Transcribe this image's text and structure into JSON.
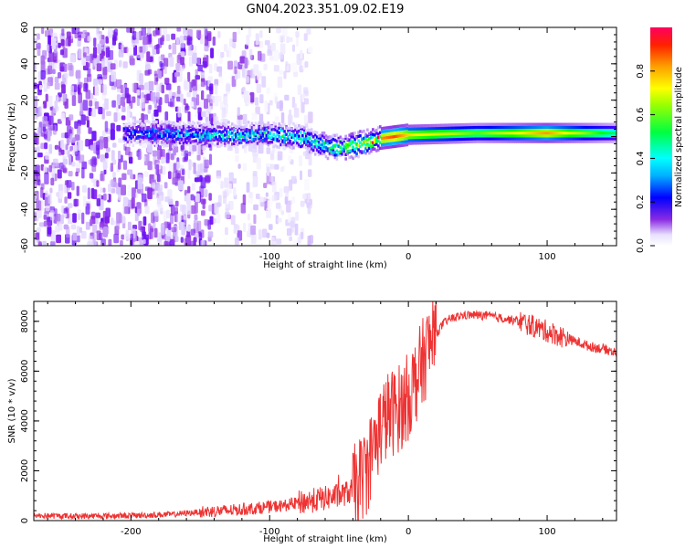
{
  "title": "GN04.2023.351.09.02.E19",
  "colors": {
    "snr_line": "#ee3333",
    "axis": "#000000",
    "background": "#ffffff",
    "colormap": [
      "#ffffff",
      "#d8c8ff",
      "#8a2be2",
      "#5a00ff",
      "#0000ff",
      "#00a0ff",
      "#00ffff",
      "#00ff80",
      "#00ff00",
      "#a0ff00",
      "#ffff00",
      "#ffa000",
      "#ff2000",
      "#ff0060"
    ]
  },
  "chart_data": [
    {
      "type": "heatmap",
      "xlabel": "Height of straight line (km)",
      "ylabel": "Frequency (Hz)",
      "xlim": [
        -270,
        150
      ],
      "ylim": [
        -60,
        60
      ],
      "xticks": [
        -200,
        -100,
        0,
        100
      ],
      "yticks": [
        -60,
        -40,
        -20,
        0,
        20,
        40,
        60
      ],
      "grid": false,
      "colorbar": {
        "label": "Normalized spectral amplitude",
        "range": [
          0,
          1
        ],
        "ticks": [
          0.0,
          0.2,
          0.4,
          0.6,
          0.8
        ]
      },
      "ridge": {
        "x": [
          -200,
          -150,
          -100,
          -80,
          -70,
          -60,
          -50,
          -40,
          -30,
          -20,
          -10,
          0,
          50,
          100,
          150
        ],
        "frequency": [
          2,
          1,
          1,
          0,
          -2,
          -5,
          -6,
          -5,
          -3,
          -1,
          0,
          1,
          2,
          2,
          2
        ],
        "amplitude": [
          0.35,
          0.45,
          0.5,
          0.5,
          0.55,
          0.6,
          0.65,
          0.7,
          0.75,
          0.85,
          0.9,
          0.8,
          0.65,
          0.85,
          0.55
        ]
      },
      "noise_extent": {
        "dense_region_x": [
          -270,
          -140
        ],
        "sparse_region_x": [
          -140,
          -70
        ]
      }
    },
    {
      "type": "line",
      "xlabel": "Height of straight line (km)",
      "ylabel": "SNR (10 * v/v)",
      "xlim": [
        -270,
        150
      ],
      "ylim": [
        0,
        8800
      ],
      "xticks": [
        -200,
        -100,
        0,
        100
      ],
      "yticks": [
        0,
        2000,
        4000,
        6000,
        8000
      ],
      "grid": false,
      "series": [
        {
          "x": [
            -270,
            -240,
            -200,
            -170,
            -150,
            -130,
            -110,
            -100,
            -90,
            -80,
            -70,
            -60,
            -50,
            -40,
            -30,
            -25,
            -20,
            -15,
            -10,
            -5,
            0,
            5,
            10,
            15,
            20,
            25,
            30,
            40,
            50,
            60,
            70,
            80,
            90,
            100,
            110,
            120,
            130,
            140,
            150
          ],
          "y": [
            200,
            180,
            200,
            250,
            350,
            400,
            500,
            550,
            600,
            700,
            800,
            900,
            1000,
            1200,
            2000,
            3000,
            3800,
            4200,
            4400,
            4600,
            5000,
            5600,
            6300,
            7000,
            7500,
            7900,
            8100,
            8250,
            8250,
            8200,
            8100,
            8000,
            7800,
            7600,
            7400,
            7200,
            7000,
            6900,
            6750
          ]
        }
      ]
    }
  ]
}
